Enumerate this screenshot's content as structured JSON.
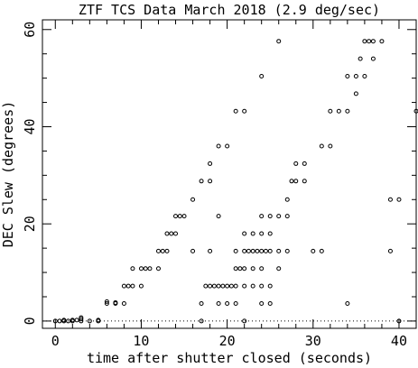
{
  "chart_data": {
    "type": "scatter",
    "title": "ZTF TCS Data March 2018 (2.9 deg/sec)",
    "xlabel": "time after shutter closed (seconds)",
    "ylabel": "DEC Slew (degrees)",
    "xlim": [
      -1.5,
      42
    ],
    "ylim": [
      -1.5,
      62
    ],
    "xticks": [
      0,
      10,
      20,
      30,
      40
    ],
    "yticks": [
      0,
      20,
      40,
      60
    ],
    "marker": "open-circle",
    "reference_line": {
      "y": 0,
      "style": "dotted"
    },
    "series": [
      {
        "points": [
          [
            0,
            0
          ],
          [
            0.5,
            0
          ],
          [
            1,
            0
          ],
          [
            1,
            0.2
          ],
          [
            1.5,
            0
          ],
          [
            2,
            0
          ],
          [
            2,
            0.2
          ],
          [
            2.5,
            0.2
          ],
          [
            3,
            0
          ],
          [
            3,
            0.4
          ],
          [
            3,
            0.7
          ],
          [
            4,
            0
          ],
          [
            5,
            0
          ],
          [
            5,
            0.2
          ],
          [
            6,
            3.6
          ],
          [
            6,
            4
          ],
          [
            7,
            3.6
          ],
          [
            7,
            3.8
          ],
          [
            8,
            3.6
          ],
          [
            8,
            7.2
          ],
          [
            8.5,
            7.2
          ],
          [
            9,
            7.2
          ],
          [
            9,
            10.8
          ],
          [
            10,
            7.2
          ],
          [
            10,
            10.8
          ],
          [
            10.5,
            10.8
          ],
          [
            11,
            10.8
          ],
          [
            12,
            10.8
          ],
          [
            12,
            14.4
          ],
          [
            12.5,
            14.4
          ],
          [
            13,
            14.4
          ],
          [
            13,
            18
          ],
          [
            13.5,
            18
          ],
          [
            14,
            18
          ],
          [
            14,
            21.6
          ],
          [
            14.5,
            21.6
          ],
          [
            15,
            21.6
          ],
          [
            16,
            25
          ],
          [
            16,
            14.4
          ],
          [
            17,
            28.8
          ],
          [
            17,
            0
          ],
          [
            17,
            3.6
          ],
          [
            17.5,
            7.2
          ],
          [
            18,
            7.2
          ],
          [
            18,
            28.8
          ],
          [
            18,
            32.4
          ],
          [
            18,
            14.4
          ],
          [
            18.5,
            7.2
          ],
          [
            19,
            36
          ],
          [
            19,
            7.2
          ],
          [
            19,
            21.6
          ],
          [
            19,
            3.6
          ],
          [
            19.5,
            7.2
          ],
          [
            20,
            36
          ],
          [
            20,
            7.2
          ],
          [
            20,
            3.6
          ],
          [
            20.5,
            7.2
          ],
          [
            21,
            43.2
          ],
          [
            21,
            7.2
          ],
          [
            21,
            10.8
          ],
          [
            21,
            14.4
          ],
          [
            21,
            3.6
          ],
          [
            21.5,
            10.8
          ],
          [
            22,
            43.2
          ],
          [
            22,
            7.2
          ],
          [
            22,
            10.8
          ],
          [
            22,
            14.4
          ],
          [
            22,
            18
          ],
          [
            22,
            0
          ],
          [
            22.5,
            14.4
          ],
          [
            23,
            10.8
          ],
          [
            23,
            14.4
          ],
          [
            23,
            18
          ],
          [
            23,
            7.2
          ],
          [
            23.5,
            14.4
          ],
          [
            24,
            50.4
          ],
          [
            24,
            21.6
          ],
          [
            24,
            18
          ],
          [
            24,
            14.4
          ],
          [
            24,
            10.8
          ],
          [
            24,
            7.2
          ],
          [
            24,
            3.6
          ],
          [
            24.5,
            14.4
          ],
          [
            25,
            21.6
          ],
          [
            25,
            18
          ],
          [
            25,
            14.4
          ],
          [
            25,
            7.2
          ],
          [
            25,
            3.6
          ],
          [
            26,
            57.6
          ],
          [
            26,
            21.6
          ],
          [
            26,
            14.4
          ],
          [
            26,
            10.8
          ],
          [
            27,
            21.6
          ],
          [
            27,
            25
          ],
          [
            27,
            14.4
          ],
          [
            27.5,
            28.8
          ],
          [
            28,
            28.8
          ],
          [
            28,
            32.4
          ],
          [
            29,
            28.8
          ],
          [
            29,
            32.4
          ],
          [
            30,
            14.4
          ],
          [
            31,
            36
          ],
          [
            31,
            14.4
          ],
          [
            32,
            36
          ],
          [
            32,
            43.2
          ],
          [
            33,
            43.2
          ],
          [
            34,
            43.2
          ],
          [
            34,
            50.4
          ],
          [
            34,
            3.6
          ],
          [
            35,
            50.4
          ],
          [
            35,
            46.8
          ],
          [
            35.5,
            54
          ],
          [
            36,
            50.4
          ],
          [
            36,
            57.6
          ],
          [
            36.5,
            57.6
          ],
          [
            37,
            57.6
          ],
          [
            37,
            54
          ],
          [
            38,
            57.6
          ],
          [
            39,
            25
          ],
          [
            39,
            14.4
          ],
          [
            40,
            25
          ],
          [
            40,
            0
          ],
          [
            42,
            43.2
          ]
        ]
      }
    ]
  }
}
